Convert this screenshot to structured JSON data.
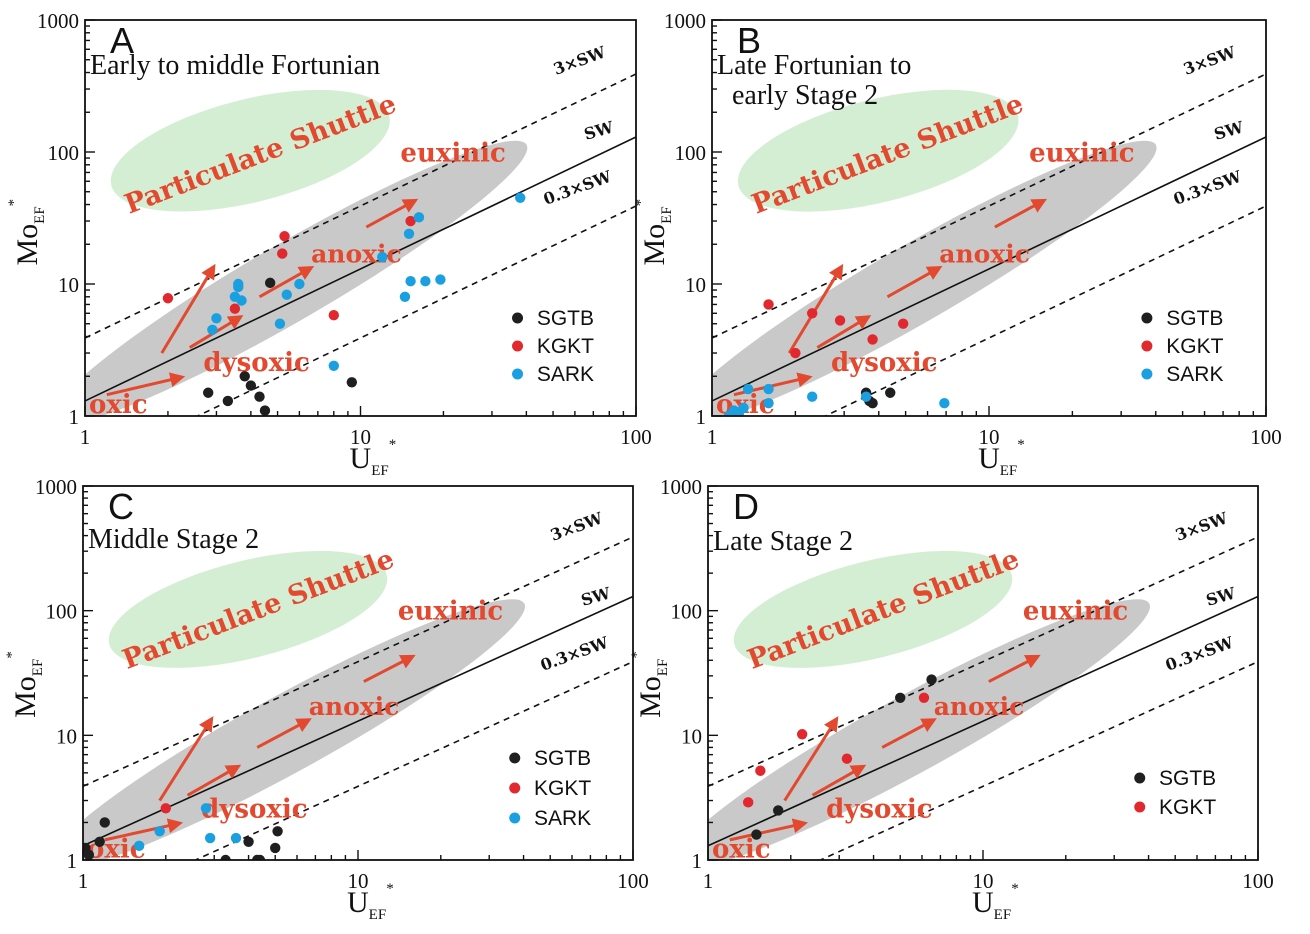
{
  "chart_data": [
    {
      "type": "scatter",
      "panel_label": "A",
      "title": "Early to middle Fortunian",
      "xlabel": "U",
      "xlabel_sub": "EF",
      "xlabel_sup": "*",
      "ylabel": "Mo",
      "ylabel_sub": "EF",
      "ylabel_sup": "*",
      "xscale": "log",
      "yscale": "log",
      "xlim": [
        1,
        100
      ],
      "ylim": [
        1,
        1000
      ],
      "xticks": [
        "1",
        "10",
        "100"
      ],
      "yticks": [
        "1",
        "10",
        "100",
        "1000"
      ],
      "ref_lines": [
        "3×SW",
        "SW",
        "0.3×SW"
      ],
      "zones": [
        "oxic",
        "dysoxic",
        "anoxic",
        "euxinic"
      ],
      "shuttle_label": "Particulate Shuttle",
      "legend_position": "right",
      "series": [
        {
          "name": "SGTB",
          "color": "#1f1f1f",
          "points": [
            [
              2.8,
              1.5
            ],
            [
              3.3,
              1.3
            ],
            [
              3.8,
              2.0
            ],
            [
              4.0,
              1.7
            ],
            [
              4.3,
              1.4
            ],
            [
              4.5,
              1.1
            ],
            [
              4.7,
              10.2
            ],
            [
              9.3,
              1.8
            ]
          ]
        },
        {
          "name": "KGKT",
          "color": "#e0282e",
          "points": [
            [
              2.0,
              7.8
            ],
            [
              3.5,
              6.5
            ],
            [
              5.2,
              17.0
            ],
            [
              5.3,
              23.0
            ],
            [
              8.0,
              5.8
            ],
            [
              15.2,
              30.0
            ]
          ]
        },
        {
          "name": "SARK",
          "color": "#1aa0e0",
          "points": [
            [
              2.9,
              4.5
            ],
            [
              3.0,
              5.5
            ],
            [
              3.5,
              8.0
            ],
            [
              3.6,
              9.5
            ],
            [
              3.6,
              10.0
            ],
            [
              3.7,
              7.5
            ],
            [
              5.1,
              5.0
            ],
            [
              5.4,
              8.3
            ],
            [
              6.0,
              10.0
            ],
            [
              8.0,
              2.4
            ],
            [
              12.0,
              16.0
            ],
            [
              14.5,
              8.0
            ],
            [
              15.0,
              24.0
            ],
            [
              15.2,
              10.5
            ],
            [
              16.3,
              32.0
            ],
            [
              17.2,
              10.5
            ],
            [
              19.5,
              10.8
            ],
            [
              38.0,
              45.0
            ]
          ]
        }
      ]
    },
    {
      "type": "scatter",
      "panel_label": "B",
      "title": "Late Fortunian to",
      "title_line2": "early Stage 2",
      "xlabel": "U",
      "xlabel_sub": "EF",
      "xlabel_sup": "*",
      "ylabel": "Mo",
      "ylabel_sub": "EF",
      "ylabel_sup": "*",
      "xscale": "log",
      "yscale": "log",
      "xlim": [
        1,
        100
      ],
      "ylim": [
        1,
        1000
      ],
      "xticks": [
        "1",
        "10",
        "100"
      ],
      "yticks": [
        "1",
        "10",
        "100",
        "1000"
      ],
      "ref_lines": [
        "3×SW",
        "SW",
        "0.3×SW"
      ],
      "zones": [
        "oxic",
        "dysoxic",
        "anoxic",
        "euxinic"
      ],
      "shuttle_label": "Particulate Shuttle",
      "legend_position": "right",
      "series": [
        {
          "name": "SGTB",
          "color": "#1f1f1f",
          "points": [
            [
              3.6,
              1.5
            ],
            [
              3.7,
              1.3
            ],
            [
              3.8,
              1.25
            ],
            [
              4.4,
              1.5
            ]
          ]
        },
        {
          "name": "KGKT",
          "color": "#e0282e",
          "points": [
            [
              1.6,
              7.0
            ],
            [
              2.0,
              3.0
            ],
            [
              2.3,
              6.0
            ],
            [
              2.9,
              5.3
            ],
            [
              3.8,
              3.8
            ],
            [
              4.9,
              5.0
            ]
          ]
        },
        {
          "name": "SARK",
          "color": "#1aa0e0",
          "points": [
            [
              1.15,
              1.0
            ],
            [
              1.2,
              1.1
            ],
            [
              1.25,
              1.05
            ],
            [
              1.3,
              1.15
            ],
            [
              1.35,
              1.6
            ],
            [
              1.6,
              1.6
            ],
            [
              1.6,
              1.25
            ],
            [
              2.3,
              1.4
            ],
            [
              3.6,
              1.4
            ],
            [
              6.9,
              1.25
            ]
          ]
        }
      ]
    },
    {
      "type": "scatter",
      "panel_label": "C",
      "title": "Middle  Stage 2",
      "xlabel": "U",
      "xlabel_sub": "EF",
      "xlabel_sup": "*",
      "ylabel": "Mo",
      "ylabel_sub": "EF",
      "ylabel_sup": "*",
      "xscale": "log",
      "yscale": "log",
      "xlim": [
        1,
        100
      ],
      "ylim": [
        1,
        1000
      ],
      "xticks": [
        "1",
        "10",
        "100"
      ],
      "yticks": [
        "1",
        "10",
        "100",
        "1000"
      ],
      "ref_lines": [
        "3×SW",
        "SW",
        "0.3×SW"
      ],
      "zones": [
        "oxic",
        "dysoxic",
        "anoxic",
        "euxinic"
      ],
      "shuttle_label": "Particulate Shuttle",
      "legend_position": "right",
      "series": [
        {
          "name": "SGTB",
          "color": "#1f1f1f",
          "points": [
            [
              1.02,
              1.25
            ],
            [
              1.05,
              1.1
            ],
            [
              1.15,
              1.4
            ],
            [
              1.2,
              2.0
            ],
            [
              3.3,
              1.0
            ],
            [
              4.0,
              1.4
            ],
            [
              4.3,
              1.0
            ],
            [
              4.4,
              1.0
            ],
            [
              5.0,
              1.25
            ],
            [
              5.1,
              1.7
            ]
          ]
        },
        {
          "name": "KGKT",
          "color": "#e0282e",
          "points": [
            [
              2.0,
              2.6
            ]
          ]
        },
        {
          "name": "SARK",
          "color": "#1aa0e0",
          "points": [
            [
              1.6,
              1.3
            ],
            [
              1.9,
              1.7
            ],
            [
              2.8,
              2.6
            ],
            [
              2.9,
              1.5
            ],
            [
              3.6,
              1.5
            ]
          ]
        }
      ]
    },
    {
      "type": "scatter",
      "panel_label": "D",
      "title": "Late Stage 2",
      "xlabel": "U",
      "xlabel_sub": "EF",
      "xlabel_sup": "*",
      "ylabel": "Mo",
      "ylabel_sub": "EF",
      "ylabel_sup": "*",
      "xscale": "log",
      "yscale": "log",
      "xlim": [
        1,
        100
      ],
      "ylim": [
        1,
        1000
      ],
      "xticks": [
        "1",
        "10",
        "100"
      ],
      "yticks": [
        "1",
        "10",
        "100",
        "1000"
      ],
      "ref_lines": [
        "3×SW",
        "SW",
        "0.3×SW"
      ],
      "zones": [
        "oxic",
        "dysoxic",
        "anoxic",
        "euxinic"
      ],
      "shuttle_label": "Particulate Shuttle",
      "legend_position": "right",
      "series": [
        {
          "name": "SGTB",
          "color": "#1f1f1f",
          "points": [
            [
              1.5,
              1.6
            ],
            [
              1.8,
              2.5
            ],
            [
              5.0,
              20.0
            ],
            [
              6.5,
              28.0
            ]
          ]
        },
        {
          "name": "KGKT",
          "color": "#e0282e",
          "points": [
            [
              1.4,
              2.9
            ],
            [
              1.55,
              5.2
            ],
            [
              2.2,
              10.2
            ],
            [
              3.2,
              6.5
            ],
            [
              6.1,
              20.0
            ]
          ]
        }
      ]
    }
  ]
}
